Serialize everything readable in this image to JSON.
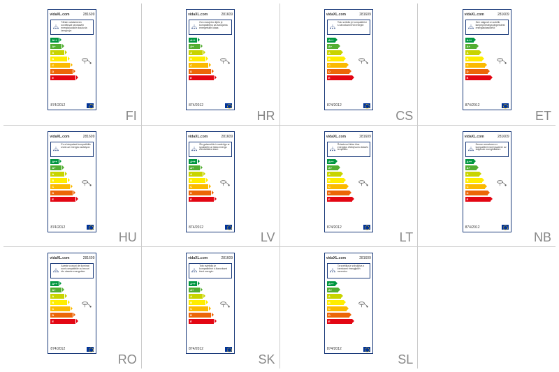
{
  "brand": "vidaXL.com",
  "product_number": "281609",
  "regulation": "874/2012",
  "energy_classes": [
    {
      "letter": "A++",
      "width": 12,
      "color": "#009640"
    },
    {
      "letter": "A+",
      "width": 16,
      "color": "#52ae32"
    },
    {
      "letter": "A",
      "width": 20,
      "color": "#c8d400"
    },
    {
      "letter": "B",
      "width": 24,
      "color": "#ffed00"
    },
    {
      "letter": "C",
      "width": 28,
      "color": "#fbba00"
    },
    {
      "letter": "D",
      "width": 32,
      "color": "#ec6608"
    },
    {
      "letter": "E",
      "width": 36,
      "color": "#e30613"
    }
  ],
  "labels": [
    {
      "country": "FI",
      "desc": "Tähän valaisimeen soveltuvat seuraaviin energialuokkiin kuuluvia lamppuja:"
    },
    {
      "country": "HR",
      "desc": "Ovo rasvjetno tijelo je kompatibilno sa žaruljama energetskih klasa:"
    },
    {
      "country": "CS",
      "desc": "Toto svítidlo je kompatibilní s žárovkami tříd energie:"
    },
    {
      "country": "ET",
      "desc": "See valgusti on sobilik lampripnestega järgmistest energiaklassidest:"
    },
    {
      "country": "HU",
      "desc": "Ez a lámpatest kompatibilis izzók az energia osztályon:"
    },
    {
      "country": "LV",
      "desc": "Šis gaismeklis ir saderīgs ar spuldzēm ar šādu energo efektivitātes klasi:"
    },
    {
      "country": "LT",
      "desc": "Šviestuvui tinka šios energijos efektyvumo klasės lemputės:"
    },
    {
      "country": "NB",
      "desc": "Denne armaturen er kompatibel med lyspærer av følgende energiklasser:"
    },
    {
      "country": "RO",
      "desc": "Aceste corpuri de iluminat sunt compatibile cu becuri din clasele energetice:"
    },
    {
      "country": "SK",
      "desc": "Toto svietidlo je kompatibilné s žiarovkami tried energie:"
    },
    {
      "country": "SL",
      "desc": "Ta svetilka je združljiva z žarnicami energijskih razredov:"
    }
  ],
  "colors": {
    "border": "#1a3a7a",
    "text": "#333333",
    "country_text": "#888888",
    "eu_blue": "#003399",
    "eu_gold": "#ffcc00"
  }
}
